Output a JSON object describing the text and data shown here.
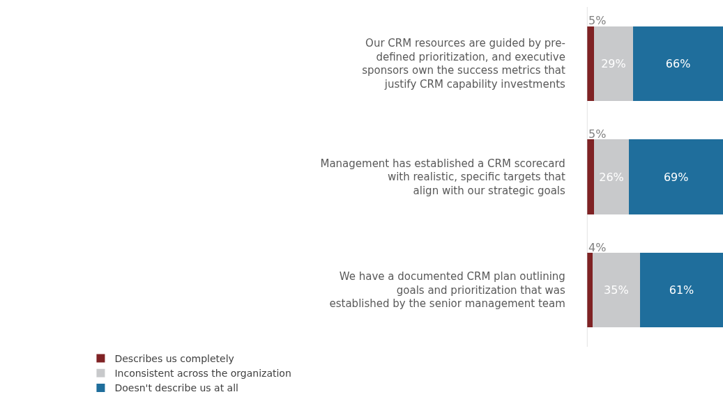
{
  "chart_data": {
    "type": "bar",
    "orientation": "horizontal",
    "stacked": true,
    "categories": [
      "Our CRM resources are guided by pre-defined prioritization, and executive sponsors own the success metrics that justify CRM capability investments",
      "Management has established a CRM scorecard with realistic, specific targets that align with our strategic goals",
      "We have a documented CRM plan outlining goals and prioritization that was established by the senior management team"
    ],
    "series": [
      {
        "name": "Describes us completely",
        "color": "#7f2224",
        "values": [
          5,
          5,
          4
        ],
        "value_labels": [
          "5%",
          "5%",
          "4%"
        ]
      },
      {
        "name": "Inconsistent across the organization",
        "color": "#c8c9cb",
        "values": [
          29,
          26,
          35
        ],
        "value_labels": [
          "29%",
          "26%",
          "35%"
        ]
      },
      {
        "name": "Doesn't describe us at all",
        "color": "#1f6e9c",
        "values": [
          66,
          69,
          61
        ],
        "value_labels": [
          "66%",
          "69%",
          "61%"
        ]
      }
    ],
    "xlim": [
      0,
      100
    ],
    "tick_labels": "y",
    "legend": "bottom"
  }
}
